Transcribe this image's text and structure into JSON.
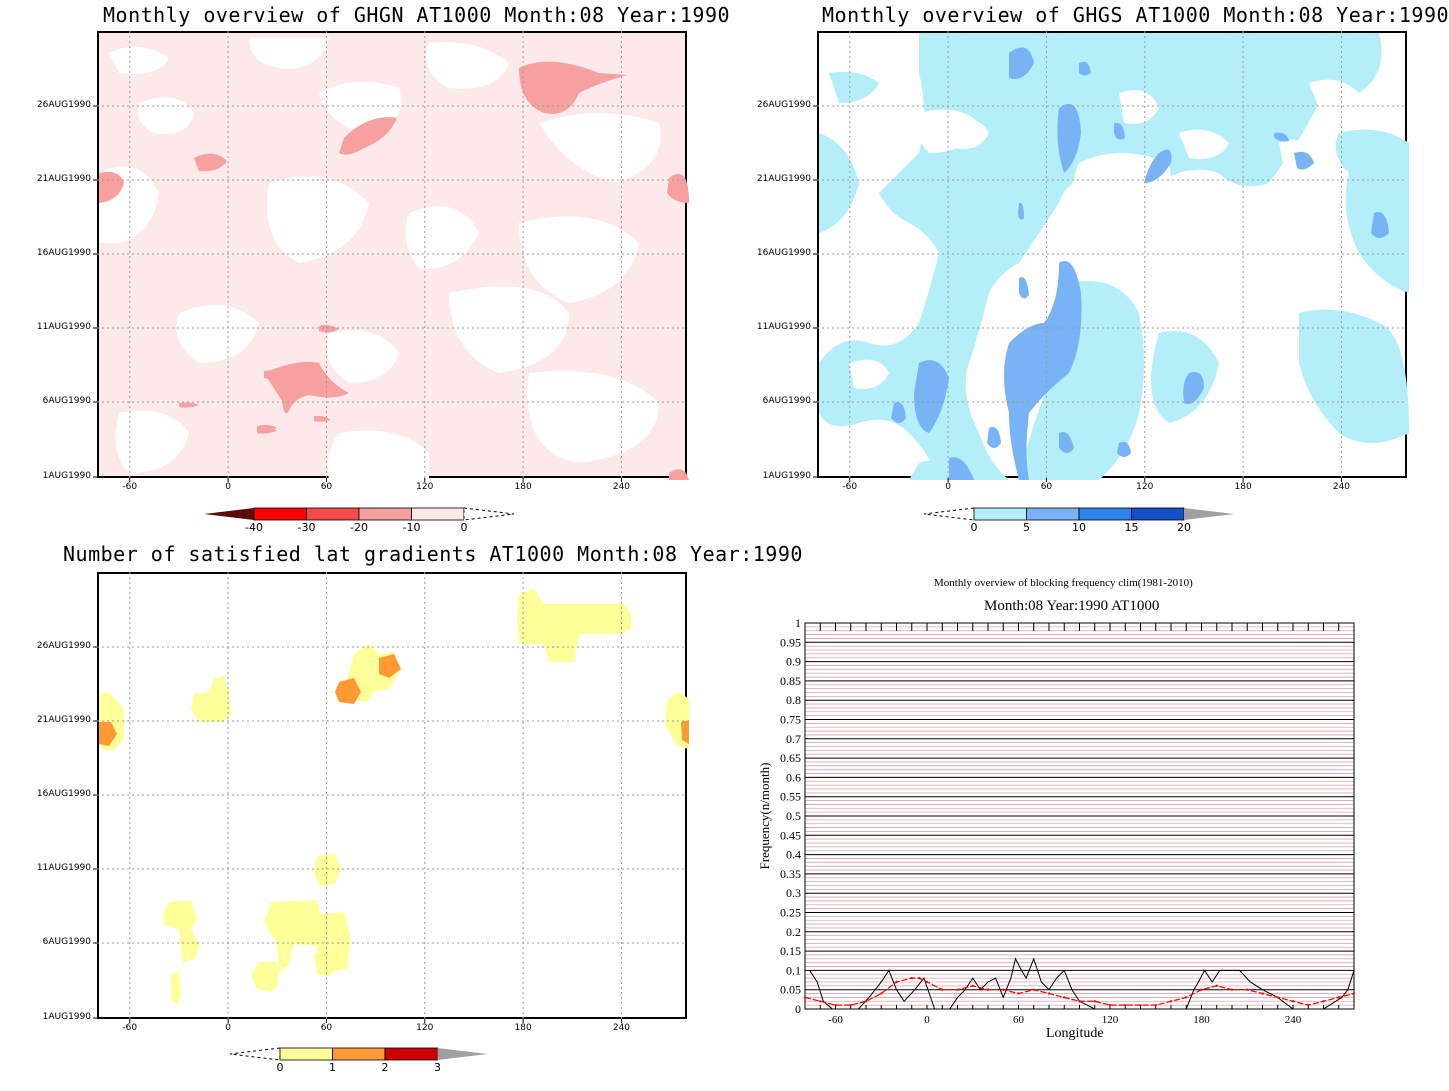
{
  "panels": [
    {
      "title": "Monthly overview of GHGN AT1000 Month:08 Year:1990",
      "xticks": [
        "-60",
        "0",
        "60",
        "120",
        "180",
        "240"
      ],
      "yticks": [
        "26AUG1990",
        "21AUG1990",
        "16AUG1990",
        "11AUG1990",
        "6AUG1990",
        "1AUG1990"
      ],
      "colorbar": {
        "labels": [
          "-40",
          "-30",
          "-20",
          "-10",
          "0"
        ],
        "colors": [
          "#5a0a0a",
          "#ff0000",
          "#f24c4c",
          "#f7a0a0",
          "#fde9e9"
        ]
      }
    },
    {
      "title": "Monthly overview of GHGS AT1000 Month:08 Year:1990",
      "xticks": [
        "-60",
        "0",
        "60",
        "120",
        "180",
        "240"
      ],
      "yticks": [
        "26AUG1990",
        "21AUG1990",
        "16AUG1990",
        "11AUG1990",
        "6AUG1990",
        "1AUG1990"
      ],
      "colorbar": {
        "labels": [
          "0",
          "5",
          "10",
          "15",
          "20"
        ],
        "colors": [
          "#b4eef8",
          "#78b4f5",
          "#2d82eb",
          "#1450c8",
          "#a0a0a0"
        ]
      }
    },
    {
      "title": "Number of satisfied lat gradients AT1000 Month:08 Year:1990",
      "xticks": [
        "-60",
        "0",
        "60",
        "120",
        "180",
        "240"
      ],
      "yticks": [
        "26AUG1990",
        "21AUG1990",
        "16AUG1990",
        "11AUG1990",
        "6AUG1990",
        "1AUG1990"
      ],
      "colorbar": {
        "labels": [
          "0",
          "1",
          "2",
          "3"
        ],
        "colors": [
          "#ffff99",
          "#ff9933",
          "#cc0000",
          "#a0a0a0"
        ]
      }
    }
  ],
  "chart_data": [
    {
      "type": "heatmap",
      "title": "Monthly overview of GHGN AT1000 Month:08 Year:1990",
      "x_range": [
        -80,
        280
      ],
      "xticks": [
        -60,
        0,
        60,
        120,
        180,
        240
      ],
      "y_range": [
        "1AUG1990",
        "31AUG1990"
      ],
      "levels": [
        -40,
        -30,
        -20,
        -10,
        0
      ]
    },
    {
      "type": "heatmap",
      "title": "Monthly overview of GHGS AT1000 Month:08 Year:1990",
      "x_range": [
        -80,
        280
      ],
      "xticks": [
        -60,
        0,
        60,
        120,
        180,
        240
      ],
      "y_range": [
        "1AUG1990",
        "31AUG1990"
      ],
      "levels": [
        0,
        5,
        10,
        15,
        20
      ]
    },
    {
      "type": "heatmap",
      "title": "Number of satisfied lat gradients AT1000 Month:08 Year:1990",
      "x_range": [
        -80,
        280
      ],
      "xticks": [
        -60,
        0,
        60,
        120,
        180,
        240
      ],
      "y_range": [
        "1AUG1990",
        "31AUG1990"
      ],
      "levels": [
        0,
        1,
        2,
        3
      ]
    },
    {
      "type": "line",
      "title": "Monthly overview of blocking frequency clim(1981-2010)",
      "subtitle": "Month:08 Year:1990  AT1000",
      "xlabel": "Longitude",
      "ylabel": "Frequency(n/month)",
      "xlim": [
        -80,
        280
      ],
      "ylim": [
        0,
        1
      ],
      "xticks": [
        "-60",
        "0",
        "60",
        "120",
        "180",
        "240"
      ],
      "yticks": [
        "0",
        "0.05",
        "0.1",
        "0.15",
        "0.2",
        "0.25",
        "0.3",
        "0.35",
        "0.4",
        "0.45",
        "0.5",
        "0.55",
        "0.6",
        "0.65",
        "0.7",
        "0.75",
        "0.8",
        "0.85",
        "0.9",
        "0.95",
        "1"
      ],
      "series": [
        {
          "color": "#000000",
          "x": [
            -77,
            -72,
            -68,
            -62,
            -55,
            -45,
            -38,
            -30,
            -25,
            -20,
            -15,
            -8,
            -2,
            5,
            10,
            15,
            20,
            25,
            30,
            35,
            40,
            45,
            50,
            55,
            58,
            62,
            65,
            70,
            75,
            80,
            85,
            90,
            95,
            100,
            110,
            120,
            130,
            140,
            150,
            160,
            170,
            175,
            178,
            182,
            187,
            192,
            198,
            205,
            212,
            220,
            230,
            240,
            250,
            260,
            268,
            272,
            276,
            280
          ],
          "y": [
            0.1,
            0.07,
            0.02,
            0,
            0,
            0,
            0.03,
            0.07,
            0.1,
            0.05,
            0.02,
            0.05,
            0.08,
            0,
            0,
            0,
            0.03,
            0.05,
            0.08,
            0.05,
            0.07,
            0.08,
            0.03,
            0.08,
            0.13,
            0.1,
            0.08,
            0.13,
            0.07,
            0.05,
            0.08,
            0.1,
            0.05,
            0.02,
            0,
            0,
            0,
            0,
            0,
            0,
            0,
            0.05,
            0.07,
            0.1,
            0.07,
            0.1,
            0.1,
            0.1,
            0.07,
            0.05,
            0.03,
            0,
            0,
            0,
            0.02,
            0.03,
            0.05,
            0.1
          ]
        },
        {
          "color": "#ff0000",
          "x": [
            -80,
            -70,
            -60,
            -50,
            -40,
            -30,
            -20,
            -10,
            -5,
            0,
            10,
            20,
            30,
            40,
            50,
            60,
            70,
            80,
            90,
            100,
            110,
            120,
            130,
            140,
            150,
            160,
            170,
            180,
            190,
            200,
            210,
            220,
            230,
            240,
            250,
            260,
            270,
            280
          ],
          "y": [
            0.03,
            0.02,
            0.01,
            0.01,
            0.02,
            0.04,
            0.07,
            0.08,
            0.08,
            0.07,
            0.05,
            0.05,
            0.06,
            0.05,
            0.05,
            0.04,
            0.05,
            0.04,
            0.03,
            0.02,
            0.02,
            0.01,
            0.01,
            0.01,
            0.01,
            0.02,
            0.03,
            0.05,
            0.06,
            0.05,
            0.05,
            0.04,
            0.03,
            0.02,
            0.01,
            0.02,
            0.03,
            0.04
          ]
        }
      ]
    }
  ]
}
